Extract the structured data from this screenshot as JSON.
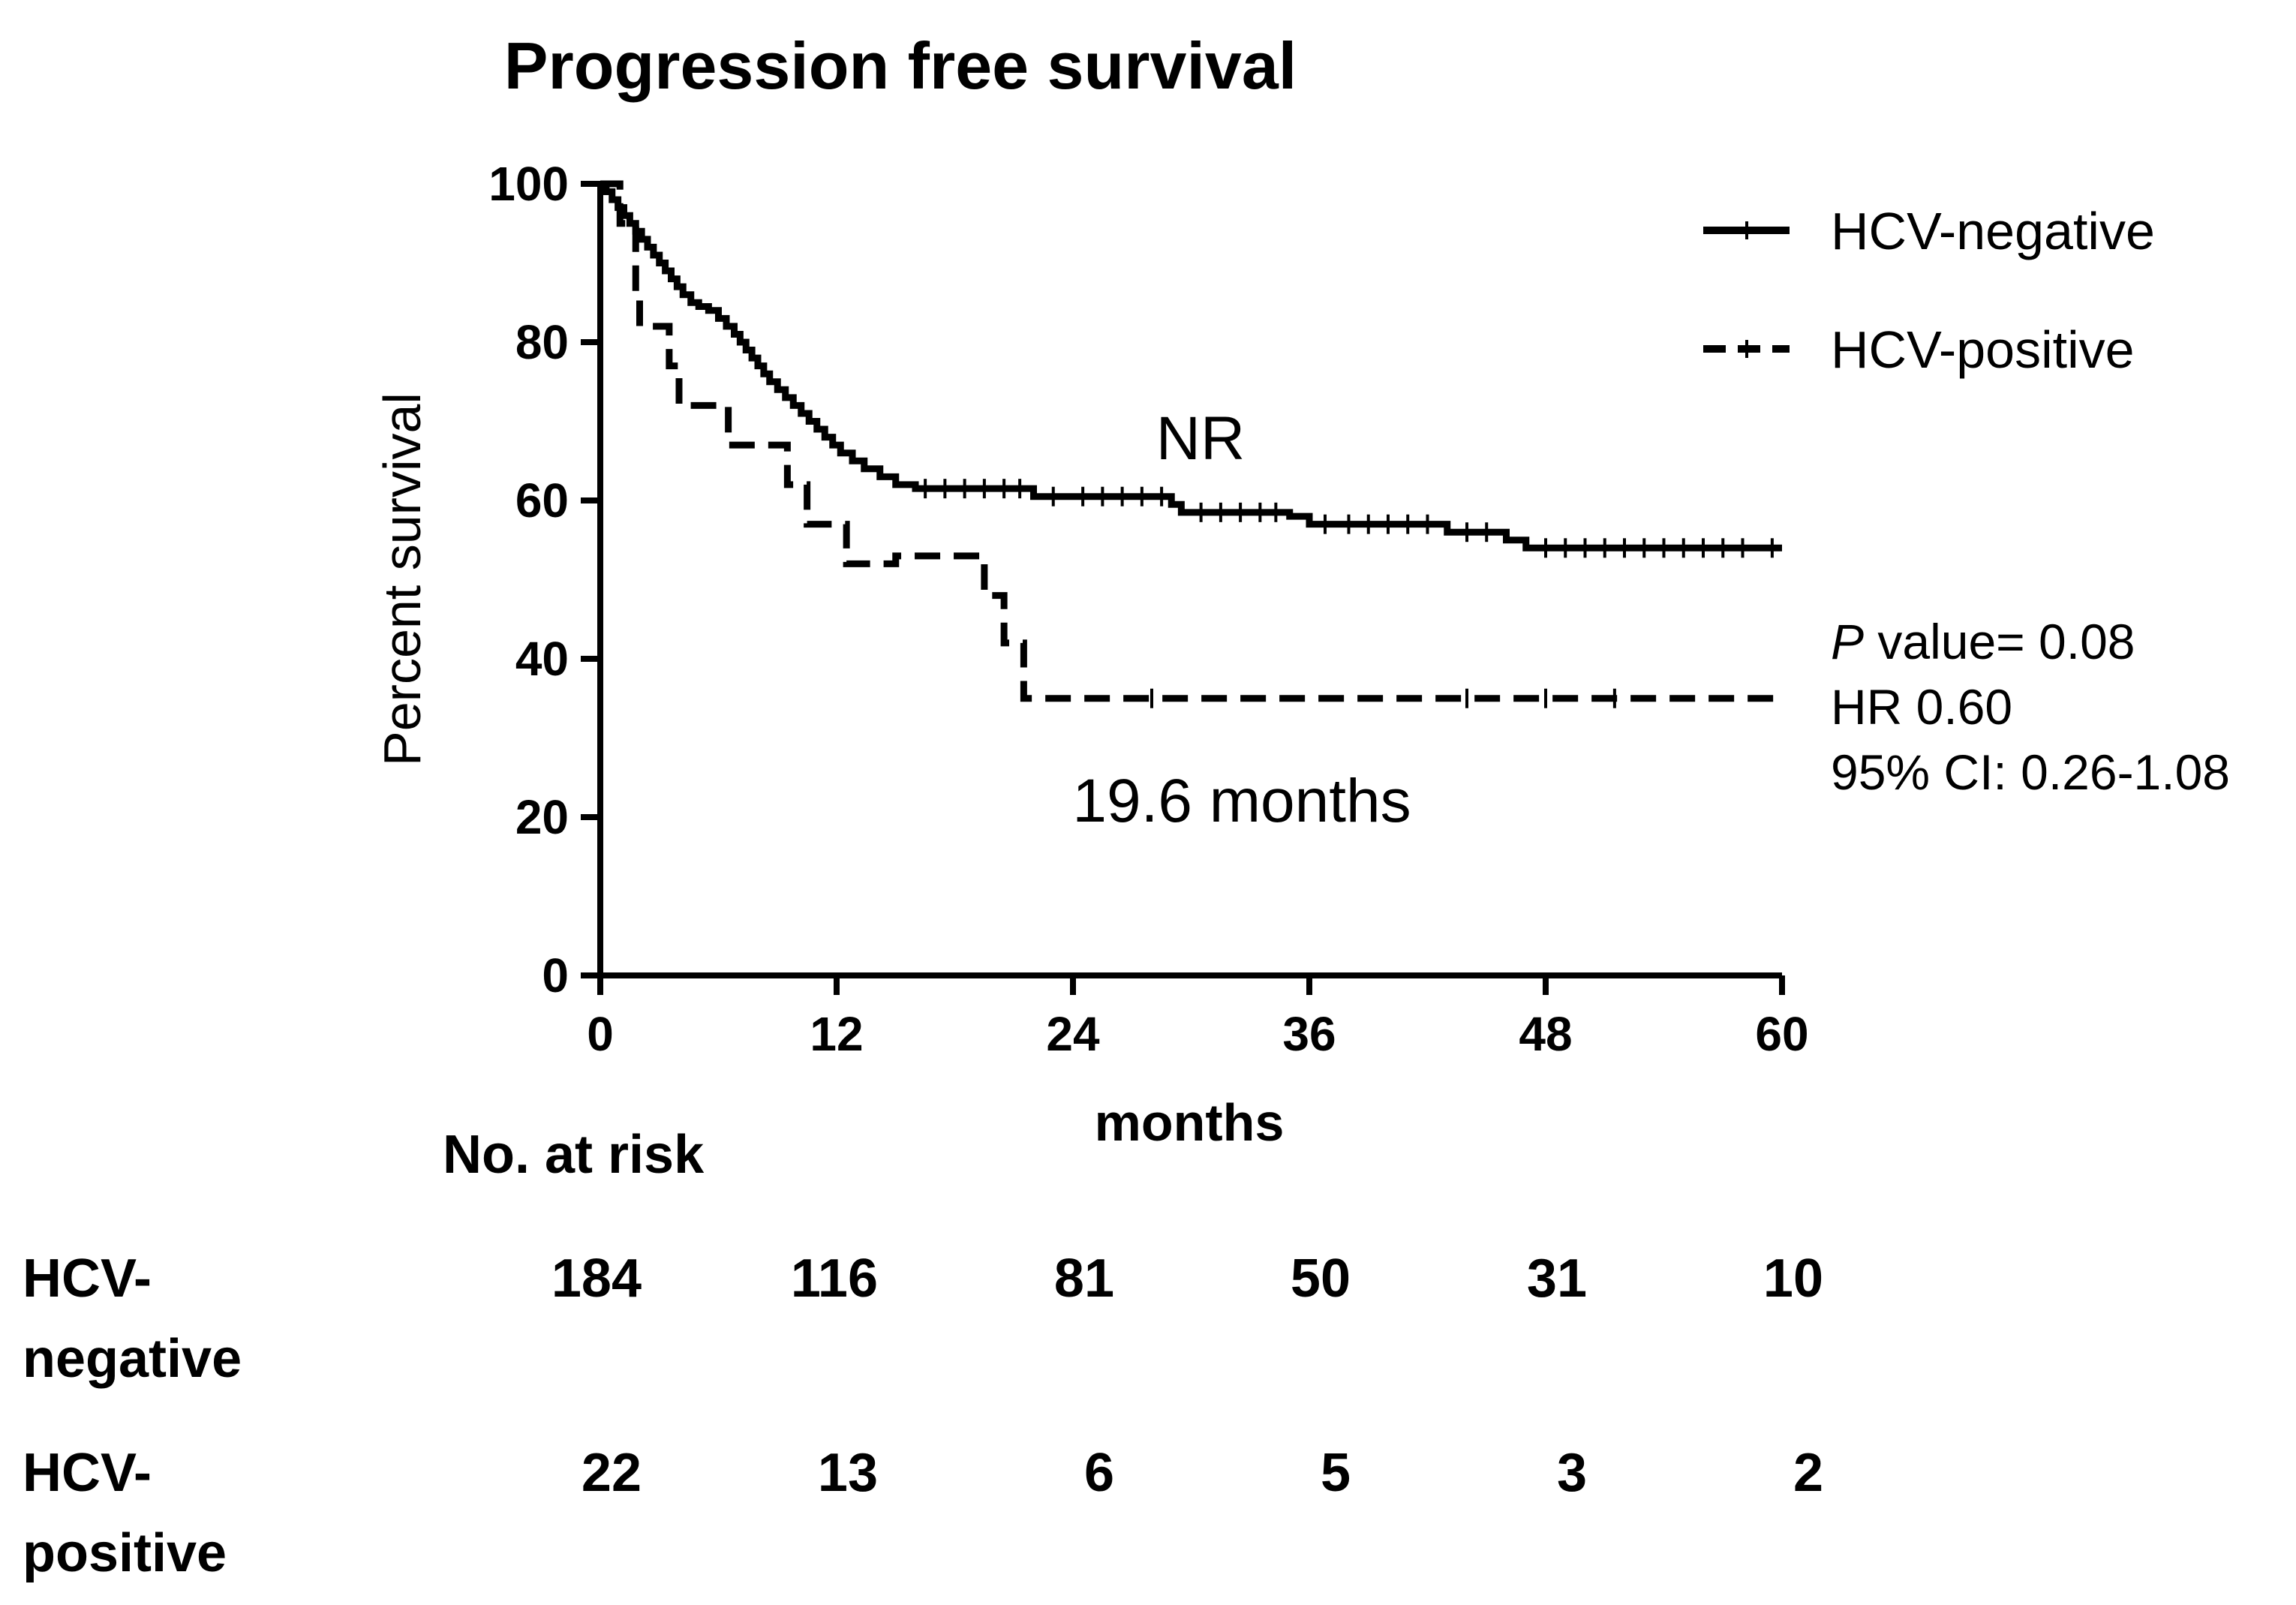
{
  "chart_data": {
    "type": "line",
    "title": "Progression free survival",
    "xlabel": "months",
    "ylabel": "Percent survival",
    "xlim": [
      0,
      60
    ],
    "ylim": [
      0,
      100
    ],
    "xticks": [
      0,
      12,
      24,
      36,
      48,
      60
    ],
    "yticks": [
      0,
      20,
      40,
      60,
      80,
      100
    ],
    "legend_position": "top-right",
    "series": [
      {
        "name": "HCV-negative",
        "style": "solid",
        "color": "#000000",
        "steps": [
          [
            0,
            100
          ],
          [
            0.3,
            99
          ],
          [
            0.6,
            98
          ],
          [
            0.9,
            97
          ],
          [
            1.2,
            96
          ],
          [
            1.5,
            95
          ],
          [
            1.8,
            94
          ],
          [
            2.1,
            93
          ],
          [
            2.4,
            92
          ],
          [
            2.7,
            91
          ],
          [
            3.0,
            90
          ],
          [
            3.3,
            89
          ],
          [
            3.6,
            88
          ],
          [
            3.9,
            87
          ],
          [
            4.2,
            86
          ],
          [
            4.6,
            85
          ],
          [
            5.0,
            84.5
          ],
          [
            5.5,
            84
          ],
          [
            6.0,
            83
          ],
          [
            6.4,
            82
          ],
          [
            6.8,
            81
          ],
          [
            7.1,
            80
          ],
          [
            7.4,
            79
          ],
          [
            7.7,
            78
          ],
          [
            8.0,
            77
          ],
          [
            8.3,
            76
          ],
          [
            8.6,
            75
          ],
          [
            9.0,
            74
          ],
          [
            9.4,
            73
          ],
          [
            9.8,
            72
          ],
          [
            10.2,
            71
          ],
          [
            10.6,
            70
          ],
          [
            11.0,
            69
          ],
          [
            11.4,
            68
          ],
          [
            11.8,
            67
          ],
          [
            12.2,
            66
          ],
          [
            12.8,
            65
          ],
          [
            13.4,
            64
          ],
          [
            14.2,
            63
          ],
          [
            15.0,
            62
          ],
          [
            16.0,
            61.5
          ],
          [
            22.0,
            60.5
          ],
          [
            29.0,
            59.5
          ],
          [
            29.5,
            58.5
          ],
          [
            35.0,
            58
          ],
          [
            36.0,
            57
          ],
          [
            43.0,
            56
          ],
          [
            46.0,
            55
          ],
          [
            47.0,
            54
          ],
          [
            60.0,
            54
          ]
        ],
        "censors": [
          [
            16.5,
            61.5
          ],
          [
            17.5,
            61.5
          ],
          [
            18.5,
            61.5
          ],
          [
            19.5,
            61.5
          ],
          [
            20.5,
            61.5
          ],
          [
            21.3,
            61.5
          ],
          [
            23.0,
            60.5
          ],
          [
            24.5,
            60.5
          ],
          [
            25.5,
            60.5
          ],
          [
            26.5,
            60.5
          ],
          [
            27.5,
            60.5
          ],
          [
            28.5,
            60.5
          ],
          [
            30.5,
            58.5
          ],
          [
            31.5,
            58.5
          ],
          [
            32.5,
            58.5
          ],
          [
            33.5,
            58.5
          ],
          [
            34.3,
            58.5
          ],
          [
            36.8,
            57
          ],
          [
            38.0,
            57
          ],
          [
            39.0,
            57
          ],
          [
            40.0,
            57
          ],
          [
            41.0,
            57
          ],
          [
            42.0,
            57
          ],
          [
            44.0,
            56
          ],
          [
            45.0,
            56
          ],
          [
            48.0,
            54
          ],
          [
            49.0,
            54
          ],
          [
            50.0,
            54
          ],
          [
            51.0,
            54
          ],
          [
            52.0,
            54
          ],
          [
            53.0,
            54
          ],
          [
            54.0,
            54
          ],
          [
            55.0,
            54
          ],
          [
            56.0,
            54
          ],
          [
            57.0,
            54
          ],
          [
            58.0,
            54
          ],
          [
            59.5,
            54
          ]
        ]
      },
      {
        "name": "HCV-positive",
        "style": "dashed",
        "color": "#000000",
        "steps": [
          [
            0,
            100
          ],
          [
            1.0,
            95
          ],
          [
            1.8,
            86
          ],
          [
            2.0,
            82
          ],
          [
            3.5,
            77
          ],
          [
            4.0,
            72
          ],
          [
            6.5,
            67
          ],
          [
            9.5,
            62
          ],
          [
            10.5,
            57
          ],
          [
            12.5,
            52
          ],
          [
            14.0,
            52
          ],
          [
            15.0,
            53
          ],
          [
            19.5,
            48
          ],
          [
            20.5,
            42
          ],
          [
            21.5,
            35
          ],
          [
            60.0,
            35
          ]
        ],
        "censors": [
          [
            28.0,
            35
          ],
          [
            44.0,
            35
          ],
          [
            48.0,
            35
          ],
          [
            51.5,
            35
          ]
        ]
      }
    ],
    "annotations": [
      "NR",
      "19.6 months"
    ]
  },
  "stats": {
    "p_label": "P",
    "p_rest": " value= 0.08",
    "hr": "HR 0.60",
    "ci": "95% CI: 0.26-1.08"
  },
  "risk_table": {
    "header": "No. at risk",
    "rows": [
      {
        "label_line1": "HCV-",
        "label_line2": "negative",
        "values": [
          "184",
          "116",
          "81",
          "50",
          "31",
          "10"
        ]
      },
      {
        "label_line1": "HCV-",
        "label_line2": "positive",
        "values": [
          "22",
          "13",
          "6",
          "5",
          "3",
          "2"
        ]
      }
    ]
  }
}
